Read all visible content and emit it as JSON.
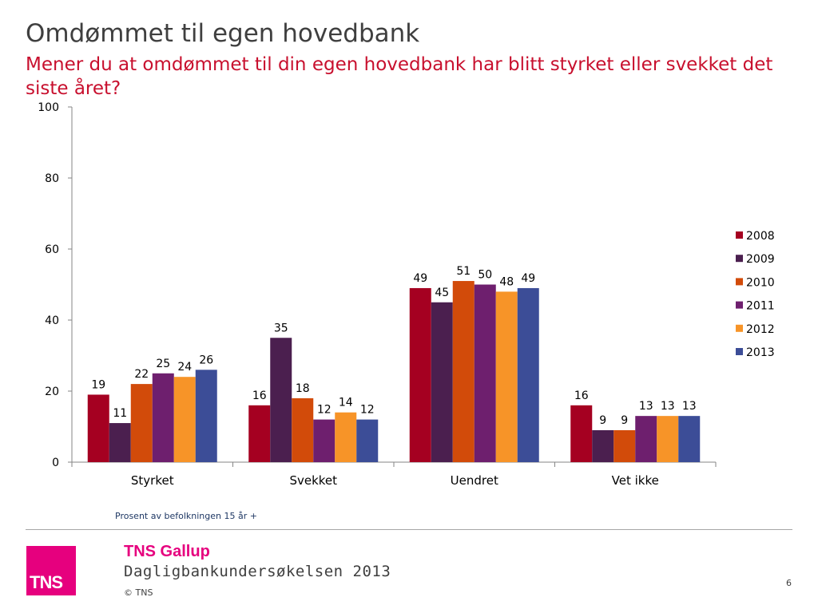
{
  "slide": {
    "title": "Omdømmet til egen hovedbank",
    "subtitle": "Mener du at omdømmet til din egen hovedbank har blitt styrket eller svekket det siste året?",
    "footnote": "Prosent av befolkningen 15 år +",
    "page_number": "6"
  },
  "footer": {
    "logo_text": "TNS",
    "brand": "TNS Gallup",
    "survey": "Dagligbankundersøkelsen 2013",
    "copyright": "© TNS"
  },
  "chart_data": {
    "type": "bar",
    "categories": [
      "Styrket",
      "Svekket",
      "Uendret",
      "Vet ikke"
    ],
    "ylim": [
      0,
      100
    ],
    "yticks": [
      0,
      20,
      40,
      60,
      80,
      100
    ],
    "grid": false,
    "legend_position": "right",
    "data_labels": true,
    "series": [
      {
        "name": "2008",
        "color": "#a50021",
        "values": [
          19,
          16,
          49,
          16
        ]
      },
      {
        "name": "2009",
        "color": "#4b1f4f",
        "values": [
          11,
          35,
          45,
          9
        ]
      },
      {
        "name": "2010",
        "color": "#d24b0a",
        "values": [
          22,
          18,
          51,
          9
        ]
      },
      {
        "name": "2011",
        "color": "#6e1f6e",
        "values": [
          25,
          12,
          50,
          13
        ]
      },
      {
        "name": "2012",
        "color": "#f79428",
        "values": [
          24,
          14,
          48,
          13
        ]
      },
      {
        "name": "2013",
        "color": "#3c4d97",
        "values": [
          26,
          12,
          49,
          13
        ]
      }
    ]
  }
}
